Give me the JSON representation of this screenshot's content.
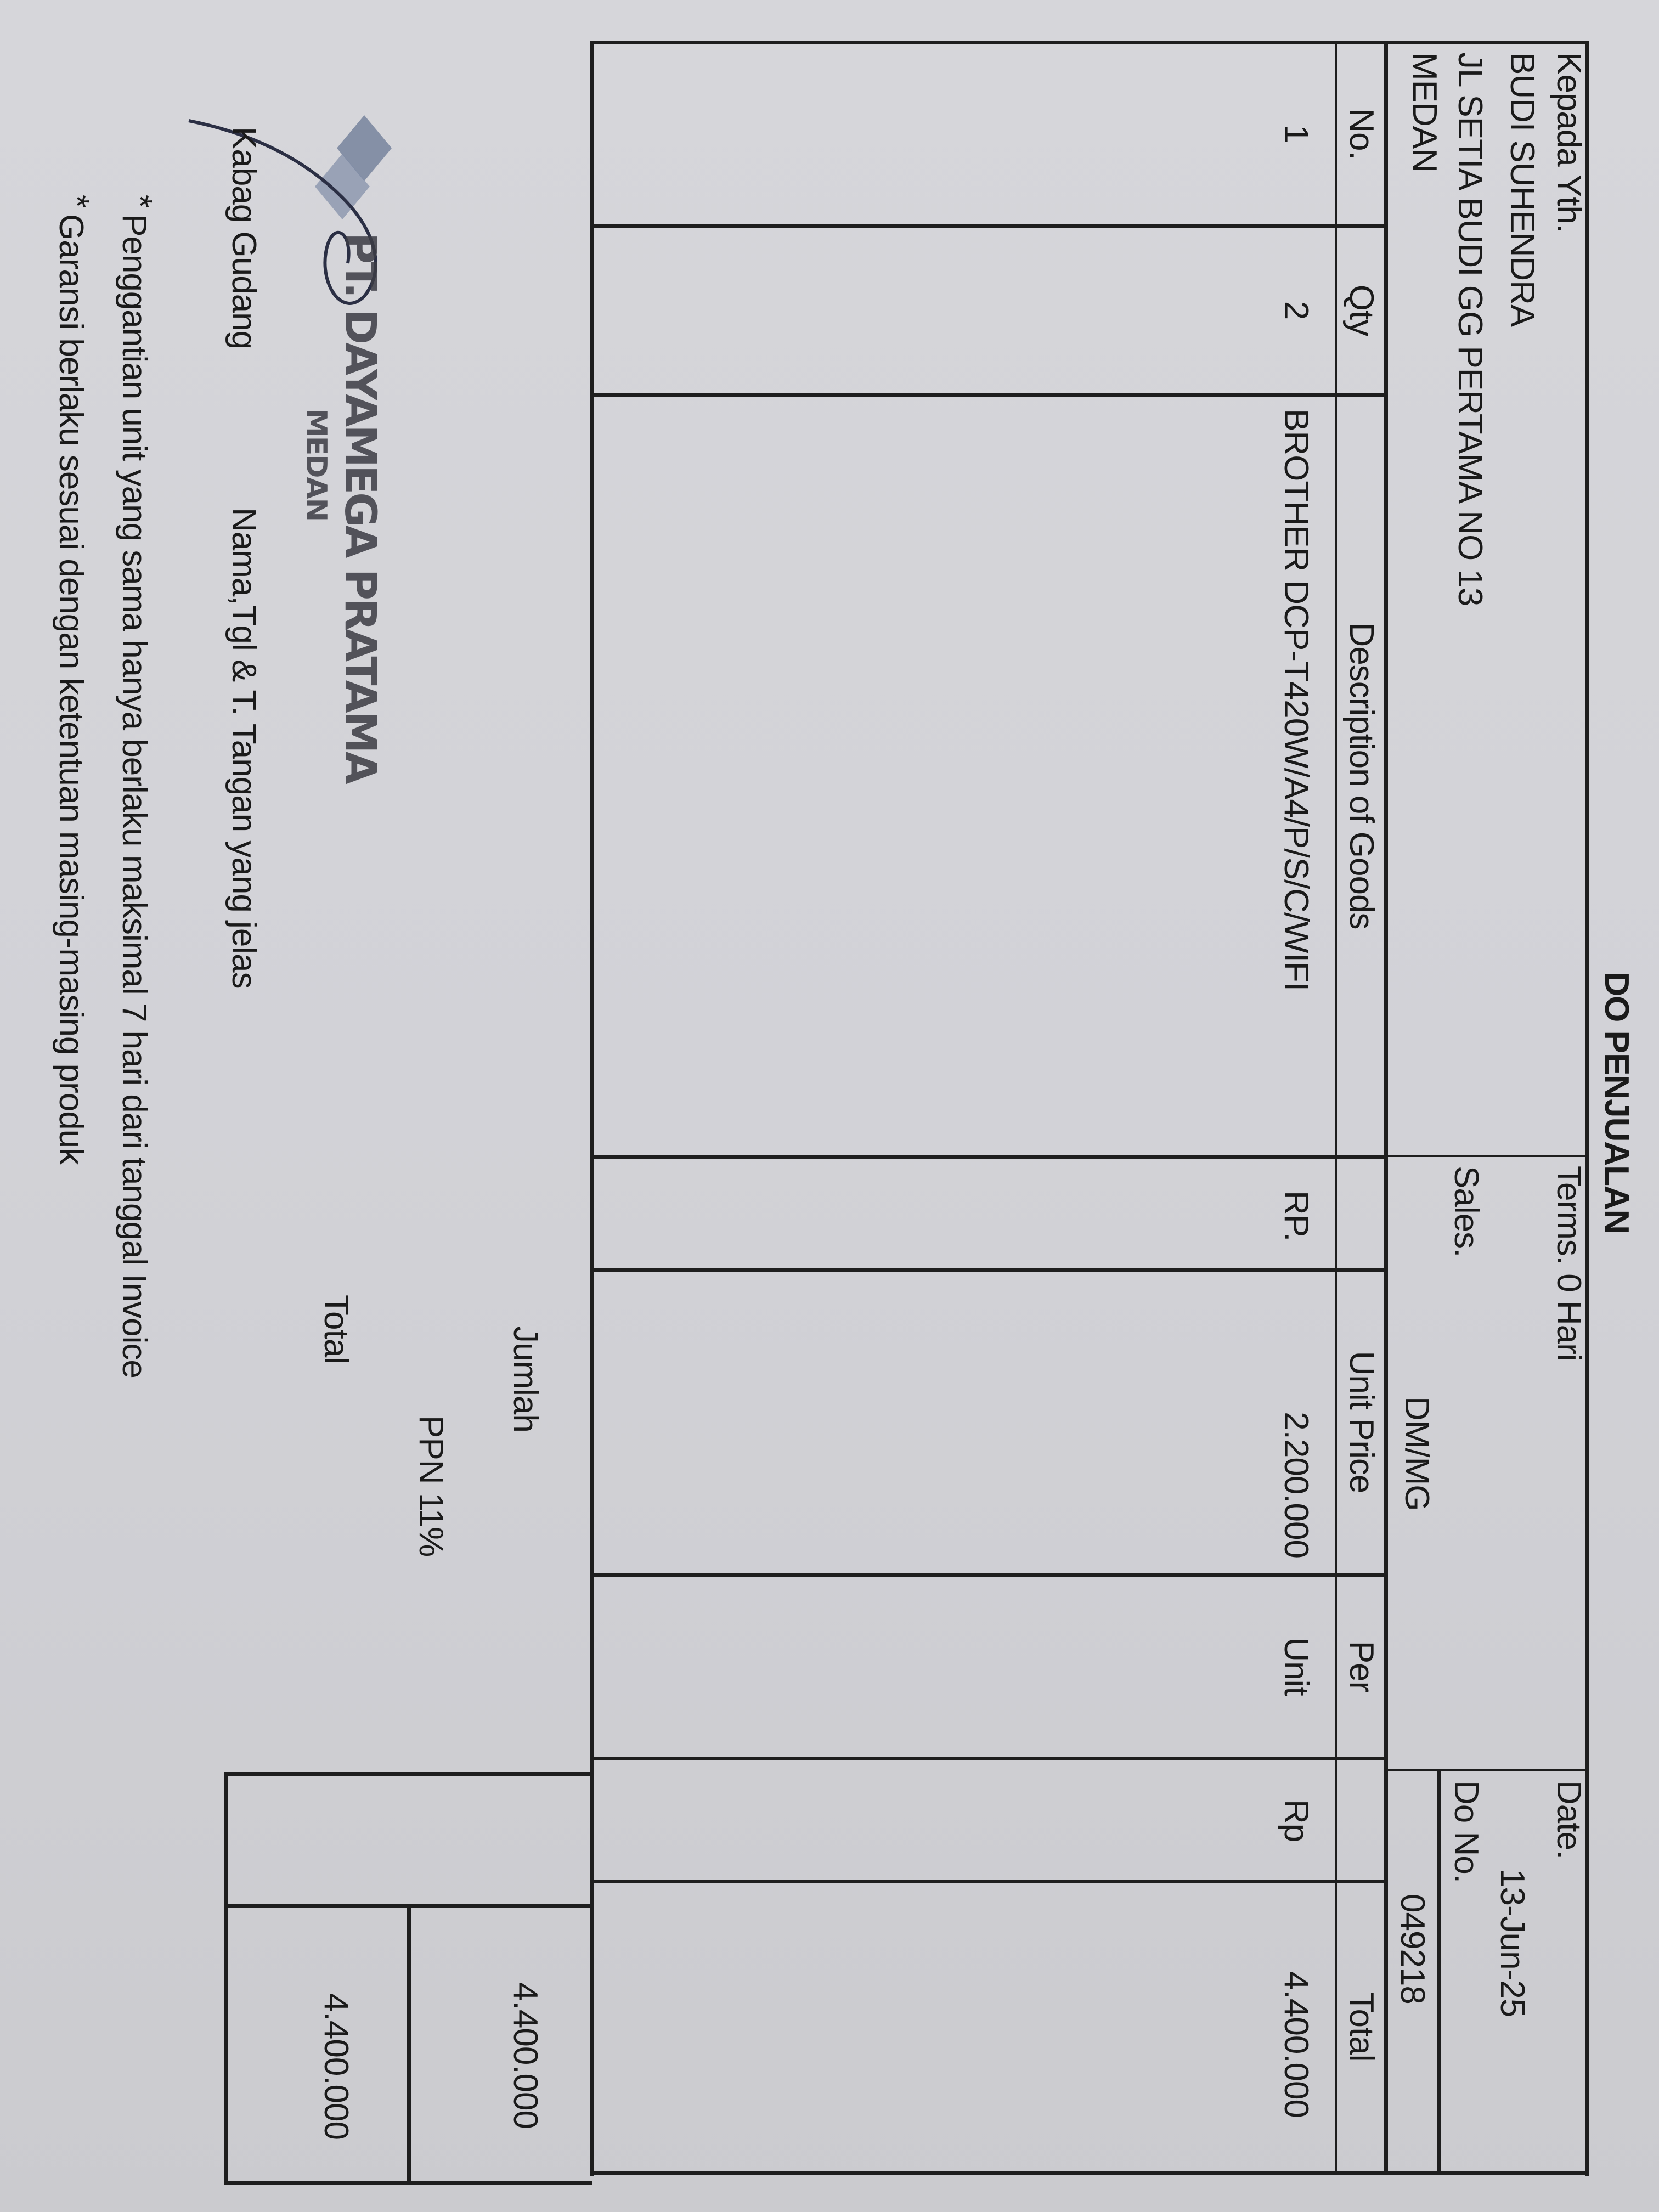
{
  "document": {
    "title": "DO PENJUALAN",
    "recipient": {
      "label": "Kepada Yth.",
      "name": "BUDI SUHENDRA",
      "address": "JL SETIA BUDI GG PERTAMA NO 13",
      "city": "MEDAN"
    },
    "terms": "Terms. 0 Hari",
    "sales_label": "Sales.",
    "sales_value": "DM/MG",
    "date_label": "Date.",
    "date_value": "13-Jun-25",
    "do_no_label": "Do No.",
    "do_no_value": "049218"
  },
  "table": {
    "headers": {
      "no": "No.",
      "qty": "Qty",
      "description": "Description of Goods",
      "unit_price": "Unit Price",
      "per": "Per",
      "total": "Total"
    },
    "rows": [
      {
        "no": "1",
        "qty": "2",
        "description": "BROTHER DCP-T420W/A4/P/S/C/WIFI",
        "currency": "RP.",
        "unit_price": "2.200.000",
        "per": "Unit",
        "currency_total": "Rp",
        "total": "4.400.000"
      }
    ]
  },
  "summary": {
    "jumlah_label": "Jumlah",
    "jumlah_value": "4.400.000",
    "ppn_label": "PPN 11%",
    "total_label": "Total",
    "total_value": "4.400.000"
  },
  "signature": {
    "role": "Kabag Gudang",
    "instruction": "Nama,Tgl & T. Tangan yang jelas",
    "stamp_company": "PT. DAYAMEGA PRATAMA",
    "stamp_city": "MEDAN"
  },
  "notes": [
    "Penggantian unit yang sama hanya berlaku maksimal 7 hari dari tanggal Invoice",
    "Garansi berlaku sesuai dengan ketentuan masing-masing produk"
  ],
  "colors": {
    "paper": "#d4d4d8",
    "ink": "#1e1e1e",
    "stamp": "#5a6a8a"
  }
}
